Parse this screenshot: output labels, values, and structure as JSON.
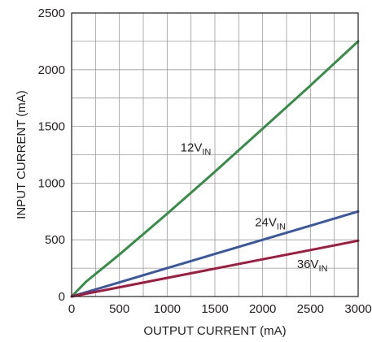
{
  "chart_data": {
    "type": "line",
    "xlabel": "OUTPUT CURRENT (mA)",
    "ylabel": "INPUT CURRENT (mA)",
    "xlim": [
      0,
      3000
    ],
    "ylim": [
      0,
      2500
    ],
    "x_ticks": [
      "0",
      "500",
      "1000",
      "1500",
      "2000",
      "2500",
      "3000"
    ],
    "y_ticks": [
      "0",
      "500",
      "1000",
      "1500",
      "2000",
      "2500"
    ],
    "grid": true,
    "series": [
      {
        "name": "12V",
        "name_sub": "IN",
        "color": "#3a8a4a",
        "x": [
          0,
          150,
          500,
          1000,
          1500,
          2000,
          2500,
          3000
        ],
        "y": [
          0,
          130,
          370,
          730,
          1100,
          1480,
          1860,
          2250
        ]
      },
      {
        "name": "24V",
        "name_sub": "IN",
        "color": "#3a57a0",
        "x": [
          0,
          500,
          1000,
          1500,
          2000,
          2500,
          3000
        ],
        "y": [
          0,
          125,
          250,
          375,
          500,
          625,
          750
        ]
      },
      {
        "name": "36V",
        "name_sub": "IN",
        "color": "#a3193f",
        "x": [
          0,
          500,
          1000,
          1500,
          2000,
          2500,
          3000
        ],
        "y": [
          0,
          82,
          164,
          246,
          328,
          410,
          492
        ]
      }
    ]
  }
}
